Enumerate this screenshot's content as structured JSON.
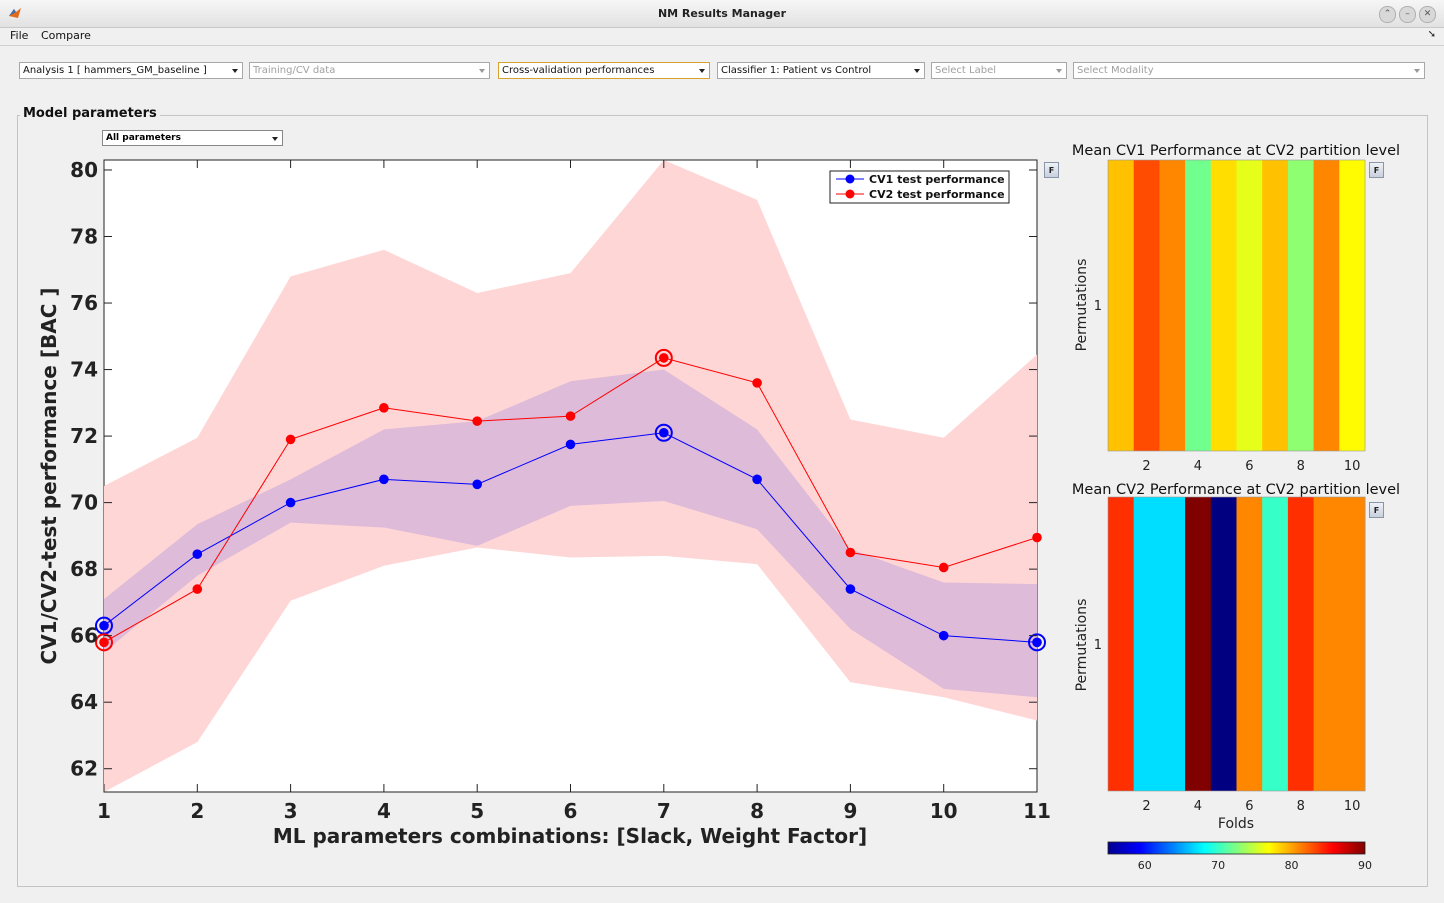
{
  "window": {
    "title": "NM Results Manager"
  },
  "menu": {
    "file": "File",
    "compare": "Compare"
  },
  "selectors": {
    "analysis": "Analysis 1 [ hammers_GM_baseline ]",
    "data": "Training/CV data",
    "view": "Cross-validation performances",
    "classifier": "Classifier 1: Patient vs Control",
    "label": "Select Label",
    "modality": "Select Modality"
  },
  "panel": {
    "title": "Model parameters",
    "param_select": "All parameters",
    "f_button": "F"
  },
  "colors": {
    "cv1": "#0000ff",
    "cv2": "#ff0000",
    "cv1_band": "#d8b6d8",
    "cv2_band": "#ffd6d6"
  },
  "chart_data": [
    {
      "type": "line",
      "xlabel": "ML parameters combinations: [Slack, Weight Factor]",
      "ylabel": "CV1/CV2-test performance [BAC ]",
      "x": [
        1,
        2,
        3,
        4,
        5,
        6,
        7,
        8,
        9,
        10,
        11
      ],
      "xlim": [
        1,
        11
      ],
      "ylim": [
        61.3,
        80.3
      ],
      "yticks": [
        62,
        64,
        66,
        68,
        70,
        72,
        74,
        76,
        78,
        80
      ],
      "legend_position": "top-right",
      "series": [
        {
          "name": "CV1 test performance",
          "color": "#0000ff",
          "values": [
            66.3,
            68.45,
            70.0,
            70.7,
            70.55,
            71.75,
            72.1,
            70.7,
            67.4,
            66.0,
            65.8
          ],
          "band_lower": [
            65.5,
            67.8,
            69.4,
            69.25,
            68.7,
            69.9,
            70.05,
            69.2,
            66.2,
            64.4,
            64.15
          ],
          "band_upper": [
            67.1,
            69.35,
            70.7,
            72.2,
            72.45,
            73.65,
            74.0,
            72.2,
            68.6,
            67.6,
            67.55
          ],
          "highlight": [
            1,
            7,
            11
          ]
        },
        {
          "name": "CV2 test performance",
          "color": "#ff0000",
          "values": [
            65.8,
            67.4,
            71.9,
            72.85,
            72.45,
            72.6,
            74.35,
            73.6,
            68.5,
            68.05,
            68.95
          ],
          "band_lower": [
            61.3,
            62.8,
            67.05,
            68.1,
            68.65,
            68.35,
            68.4,
            68.15,
            64.6,
            64.15,
            63.45
          ],
          "band_upper": [
            70.5,
            71.95,
            76.8,
            77.6,
            76.3,
            76.9,
            80.3,
            79.1,
            72.5,
            71.95,
            74.45
          ],
          "highlight": [
            1,
            7
          ]
        }
      ]
    },
    {
      "type": "heatmap",
      "title": "Mean CV1 Performance at CV2 partition level",
      "ylabel": "Permutations",
      "ytick": "1",
      "xticks": [
        2,
        4,
        6,
        8,
        10
      ],
      "columns": [
        79,
        83,
        81,
        72,
        78,
        76,
        79,
        73,
        81,
        77
      ],
      "clim": [
        55,
        90
      ]
    },
    {
      "type": "heatmap",
      "title": "Mean CV2 Performance at CV2 partition level",
      "ylabel": "Permutations",
      "xlabel": "Folds",
      "ytick": "1",
      "xticks": [
        2,
        4,
        6,
        8,
        10
      ],
      "columns": [
        84,
        67,
        67,
        91,
        55,
        81,
        70,
        84,
        81,
        81
      ],
      "clim": [
        55,
        90
      ]
    }
  ],
  "colorbar": {
    "ticks": [
      60,
      70,
      80,
      90
    ],
    "clim": [
      55,
      90
    ]
  }
}
